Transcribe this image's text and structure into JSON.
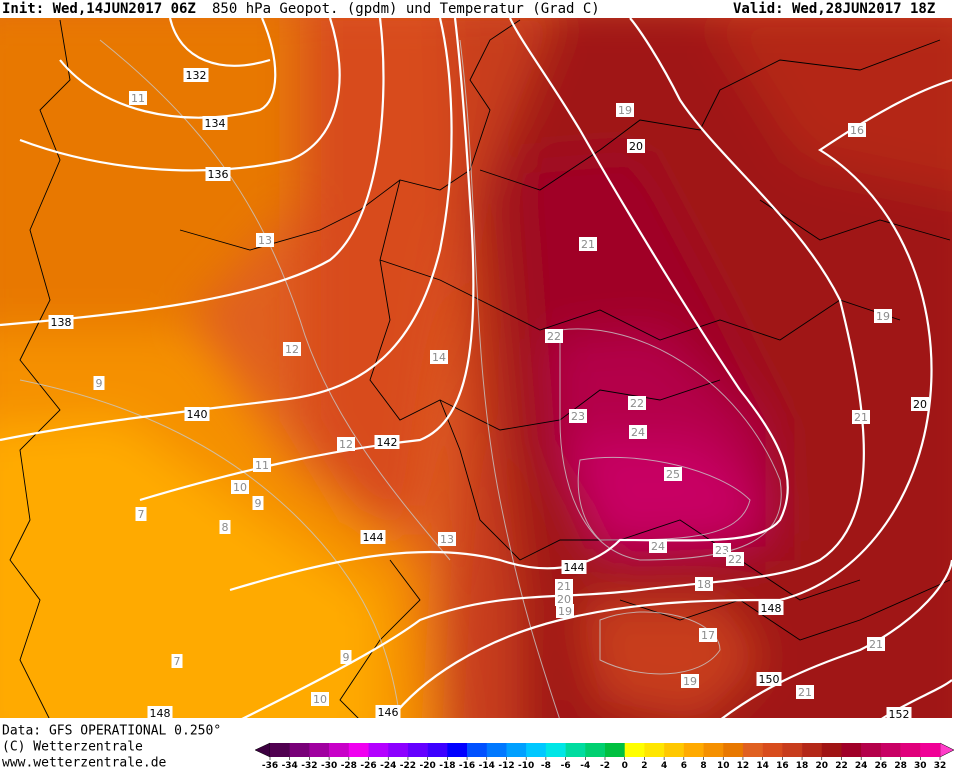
{
  "header": {
    "init": "Init: Wed,14JUN2017 06Z",
    "title": "850 hPa Geopot. (gpdm) und Temperatur (Grad C)",
    "valid": "Valid: Wed,28JUN2017 18Z"
  },
  "footer": {
    "data": "Data: GFS OPERATIONAL 0.250°",
    "copyright": "(C) Wetterzentrale",
    "url": "www.wetterzentrale.de"
  },
  "colorbar": {
    "ticks": [
      -36,
      -34,
      -32,
      -30,
      -28,
      -26,
      -24,
      -22,
      -20,
      -18,
      -16,
      -14,
      -12,
      -10,
      -8,
      -6,
      -4,
      -2,
      0,
      2,
      4,
      6,
      8,
      10,
      12,
      14,
      16,
      18,
      20,
      22,
      24,
      26,
      28,
      30,
      32
    ],
    "colors": [
      "#500050",
      "#780078",
      "#a000a0",
      "#c800c8",
      "#f000f0",
      "#b400ff",
      "#8c00ff",
      "#6400ff",
      "#3c00ff",
      "#0000ff",
      "#0050ff",
      "#0078ff",
      "#00a0ff",
      "#00c8ff",
      "#00e6e6",
      "#00dca0",
      "#00d070",
      "#00c040",
      "#ffff00",
      "#ffe600",
      "#ffc800",
      "#ffaa00",
      "#f59000",
      "#e87800",
      "#e06020",
      "#d84c1c",
      "#c83c1c",
      "#b42818",
      "#a01414",
      "#a00028",
      "#b4004a",
      "#c80064",
      "#e0007c",
      "#f00096"
    ],
    "low_color": "#3c0040",
    "high_color": "#ff3cc8"
  },
  "geopotential_labels": [
    "132",
    "134",
    "136",
    "138",
    "140",
    "142",
    "144",
    "144",
    "146",
    "148",
    "148",
    "150",
    "152",
    "20",
    "20"
  ],
  "temperature_labels": [
    "11",
    "13",
    "12",
    "9",
    "14",
    "12",
    "11",
    "10",
    "9",
    "7",
    "8",
    "13",
    "9",
    "7",
    "10",
    "19",
    "21",
    "22",
    "22",
    "23",
    "24",
    "25",
    "24",
    "23",
    "22",
    "21",
    "20",
    "19",
    "18",
    "17",
    "19",
    "21",
    "21",
    "21",
    "19",
    "16"
  ]
}
